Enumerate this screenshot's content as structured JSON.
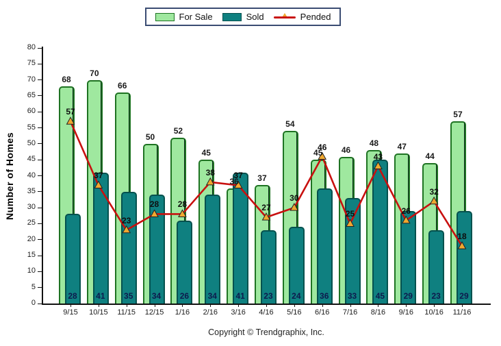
{
  "legend": {
    "items": [
      {
        "label": "For Sale"
      },
      {
        "label": "Sold"
      },
      {
        "label": "Pended"
      }
    ]
  },
  "chart_data": {
    "type": "bar",
    "title": "",
    "xlabel": "",
    "ylabel": "Number of Homes",
    "ylim": [
      0,
      80
    ],
    "ytick_step": 5,
    "grid": false,
    "legend_position": "top",
    "categories": [
      "9/15",
      "10/15",
      "11/15",
      "12/15",
      "1/16",
      "2/16",
      "3/16",
      "4/16",
      "5/16",
      "6/16",
      "7/16",
      "8/16",
      "9/16",
      "10/16",
      "11/16"
    ],
    "series": [
      {
        "name": "For Sale",
        "kind": "bar",
        "color": "#9fe89f",
        "border_color": "#1e7322",
        "values": [
          68,
          70,
          66,
          50,
          52,
          45,
          36,
          37,
          54,
          45,
          46,
          48,
          47,
          44,
          57
        ]
      },
      {
        "name": "Sold",
        "kind": "bar",
        "color": "#0f8080",
        "border_color": "#05514e",
        "values": [
          28,
          41,
          35,
          34,
          26,
          34,
          41,
          23,
          24,
          36,
          33,
          45,
          29,
          23,
          29
        ]
      },
      {
        "name": "Pended",
        "kind": "line",
        "color": "#c8100f",
        "marker_color": "#f0a830",
        "values": [
          57,
          37,
          23,
          28,
          28,
          38,
          37,
          27,
          30,
          46,
          25,
          43,
          26,
          32,
          18
        ]
      }
    ]
  },
  "footer": {
    "copyright": "Copyright © Trendgraphix, Inc."
  }
}
